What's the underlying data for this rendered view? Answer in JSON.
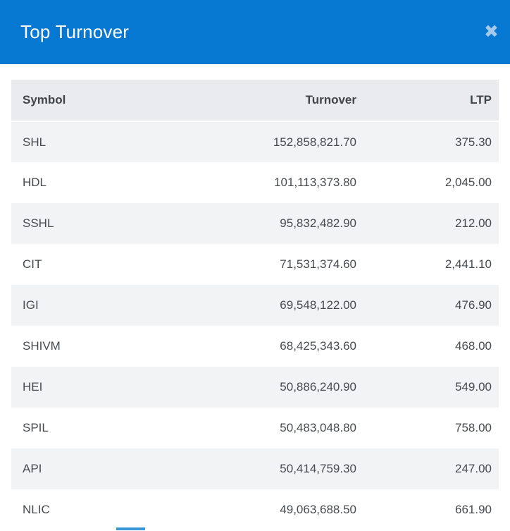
{
  "modal": {
    "title": "Top Turnover",
    "close_glyph": "✖"
  },
  "colors": {
    "header-bg": "#0778d2",
    "header-title": "#ffffff",
    "close-icon": "#a5c8eb",
    "table-head-bg": "#e9ebee",
    "row-stripe-bg": "#f2f3f4",
    "row-white-bg": "#ffffff",
    "head-text": "#3f444a",
    "cell-text": "#474b50",
    "indicator": "#3a97d9"
  },
  "table": {
    "columns": [
      "Symbol",
      "Turnover",
      "LTP"
    ],
    "rows": [
      {
        "symbol": "SHL",
        "turnover": "152,858,821.70",
        "ltp": "375.30"
      },
      {
        "symbol": "HDL",
        "turnover": "101,113,373.80",
        "ltp": "2,045.00"
      },
      {
        "symbol": "SSHL",
        "turnover": "95,832,482.90",
        "ltp": "212.00"
      },
      {
        "symbol": "CIT",
        "turnover": "71,531,374.60",
        "ltp": "2,441.10"
      },
      {
        "symbol": "IGI",
        "turnover": "69,548,122.00",
        "ltp": "476.90"
      },
      {
        "symbol": "SHIVM",
        "turnover": "68,425,343.60",
        "ltp": "468.00"
      },
      {
        "symbol": "HEI",
        "turnover": "50,886,240.90",
        "ltp": "549.00"
      },
      {
        "symbol": "SPIL",
        "turnover": "50,483,048.80",
        "ltp": "758.00"
      },
      {
        "symbol": "API",
        "turnover": "50,414,759.30",
        "ltp": "247.00"
      },
      {
        "symbol": "NLIC",
        "turnover": "49,063,688.50",
        "ltp": "661.90"
      }
    ]
  }
}
